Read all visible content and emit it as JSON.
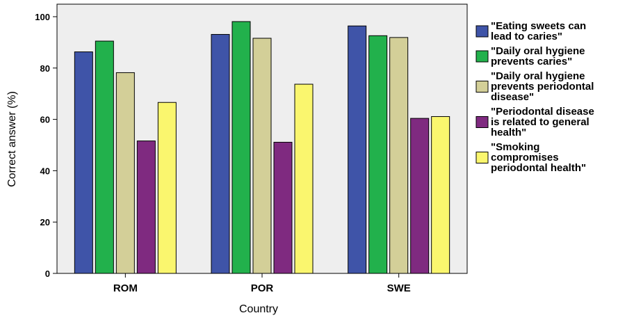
{
  "chart_data": {
    "type": "bar",
    "title": "",
    "xlabel": "Country",
    "ylabel": "Correct answer (%)",
    "ylim": [
      0,
      100
    ],
    "yticks": [
      0,
      20,
      40,
      60,
      80,
      100
    ],
    "grid": false,
    "legend_position": "right",
    "categories": [
      "ROM",
      "POR",
      "SWE"
    ],
    "series": [
      {
        "name": "\"Eating sweets can lead to caries\"",
        "legend_lines": [
          "\"Eating sweets can",
          "lead to caries\""
        ],
        "color": "#3f54a8",
        "values": [
          86.3,
          93.1,
          96.4
        ]
      },
      {
        "name": "\"Daily oral hygiene prevents caries\"",
        "legend_lines": [
          "\"Daily oral hygiene",
          "prevents caries\""
        ],
        "color": "#22b14c",
        "values": [
          90.5,
          98.1,
          92.6
        ]
      },
      {
        "name": "\"Daily oral hygiene prevents periodontal disease\"",
        "legend_lines": [
          "\"Daily oral hygiene",
          "prevents periodontal",
          "disease\""
        ],
        "color": "#d3cf98",
        "values": [
          78.2,
          91.6,
          91.9
        ]
      },
      {
        "name": "\"Periodontal disease is related to general health\"",
        "legend_lines": [
          "\"Periodontal disease",
          "is related to general",
          "health\""
        ],
        "color": "#7f2a80",
        "values": [
          51.6,
          51.1,
          60.4
        ]
      },
      {
        "name": "\"Smoking compromises periodontal health\"",
        "legend_lines": [
          "\"Smoking",
          "compromises",
          "periodontal health\""
        ],
        "color": "#faf66e",
        "values": [
          66.6,
          73.7,
          61.1
        ]
      }
    ],
    "plot_background": "#eeeeee",
    "bar_outline": "#000000"
  }
}
